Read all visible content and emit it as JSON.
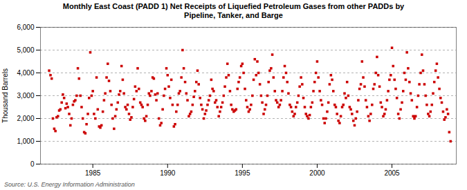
{
  "chart_data": {
    "type": "scatter",
    "title": "Monthly East Coast (PADD 1) Net Receipts of Liquefied Petroleum Gases from other PADDs by\nPipeline, Tanker, and Barge",
    "ylabel": "Thousand Barrels",
    "annotations": [
      "Source: U.S. Energy Information Administration"
    ],
    "color": "#cc0000",
    "marker": "square",
    "grid": "y",
    "xlim": [
      1981.5,
      2009.3
    ],
    "ylim": [
      0,
      6000
    ],
    "xticks": [
      1985,
      1990,
      1995,
      2000,
      2005
    ],
    "yticks": [
      0,
      {
        "value": 1000,
        "label": "1,000"
      },
      {
        "value": 2000,
        "label": "2,000"
      },
      {
        "value": 3000,
        "label": "3,000"
      },
      {
        "value": 4000,
        "label": "4,000"
      },
      {
        "value": 5000,
        "label": "5,000"
      },
      {
        "value": 6000,
        "label": "6,000"
      }
    ],
    "x": [
      1982.08,
      1982.17,
      1982.25,
      1982.33,
      1982.42,
      1982.5,
      1982.58,
      1982.67,
      1982.75,
      1982.83,
      1982.92,
      1983.0,
      1983.08,
      1983.17,
      1983.25,
      1983.33,
      1983.42,
      1983.5,
      1983.58,
      1983.67,
      1983.75,
      1983.83,
      1983.92,
      1984.0,
      1984.08,
      1984.17,
      1984.25,
      1984.33,
      1984.42,
      1984.5,
      1984.58,
      1984.67,
      1984.75,
      1984.83,
      1984.92,
      1985.0,
      1985.08,
      1985.17,
      1985.25,
      1985.33,
      1985.42,
      1985.5,
      1985.58,
      1985.67,
      1985.75,
      1985.83,
      1985.92,
      1986.0,
      1986.08,
      1986.17,
      1986.25,
      1986.33,
      1986.42,
      1986.5,
      1986.58,
      1986.67,
      1986.75,
      1986.83,
      1986.92,
      1987.0,
      1987.08,
      1987.17,
      1987.25,
      1987.33,
      1987.42,
      1987.5,
      1987.58,
      1987.67,
      1987.75,
      1987.83,
      1987.92,
      1988.0,
      1988.08,
      1988.17,
      1988.25,
      1988.33,
      1988.42,
      1988.5,
      1988.58,
      1988.67,
      1988.75,
      1988.83,
      1988.92,
      1989.0,
      1989.08,
      1989.17,
      1989.25,
      1989.33,
      1989.42,
      1989.5,
      1989.58,
      1989.67,
      1989.75,
      1989.83,
      1989.92,
      1990.0,
      1990.08,
      1990.17,
      1990.25,
      1990.33,
      1990.42,
      1990.5,
      1990.58,
      1990.67,
      1990.75,
      1990.83,
      1990.92,
      1991.0,
      1991.08,
      1991.17,
      1991.25,
      1991.33,
      1991.42,
      1991.5,
      1991.58,
      1991.67,
      1991.75,
      1991.83,
      1991.92,
      1992.0,
      1992.08,
      1992.17,
      1992.25,
      1992.33,
      1992.42,
      1992.5,
      1992.58,
      1992.67,
      1992.75,
      1992.83,
      1992.92,
      1993.0,
      1993.08,
      1993.17,
      1993.25,
      1993.33,
      1993.42,
      1993.5,
      1993.58,
      1993.67,
      1993.75,
      1993.83,
      1993.92,
      1994.0,
      1994.08,
      1994.17,
      1994.25,
      1994.33,
      1994.42,
      1994.5,
      1994.58,
      1994.67,
      1994.75,
      1994.83,
      1994.92,
      1995.0,
      1995.08,
      1995.17,
      1995.25,
      1995.33,
      1995.42,
      1995.5,
      1995.58,
      1995.67,
      1995.75,
      1995.83,
      1995.92,
      1996.0,
      1996.08,
      1996.17,
      1996.25,
      1996.33,
      1996.42,
      1996.5,
      1996.58,
      1996.67,
      1996.75,
      1996.83,
      1996.92,
      1997.0,
      1997.08,
      1997.17,
      1997.25,
      1997.33,
      1997.42,
      1997.5,
      1997.58,
      1997.67,
      1997.75,
      1997.83,
      1997.92,
      1998.0,
      1998.08,
      1998.17,
      1998.25,
      1998.33,
      1998.42,
      1998.5,
      1998.58,
      1998.67,
      1998.75,
      1998.83,
      1998.92,
      1999.0,
      1999.08,
      1999.17,
      1999.25,
      1999.33,
      1999.42,
      1999.5,
      1999.58,
      1999.67,
      1999.75,
      1999.83,
      1999.92,
      2000.0,
      2000.08,
      2000.17,
      2000.25,
      2000.33,
      2000.42,
      2000.5,
      2000.58,
      2000.67,
      2000.75,
      2000.83,
      2000.92,
      2001.0,
      2001.08,
      2001.17,
      2001.25,
      2001.33,
      2001.42,
      2001.5,
      2001.58,
      2001.67,
      2001.75,
      2001.83,
      2001.92,
      2002.0,
      2002.08,
      2002.17,
      2002.25,
      2002.33,
      2002.42,
      2002.5,
      2002.58,
      2002.67,
      2002.75,
      2002.83,
      2002.92,
      2003.0,
      2003.08,
      2003.17,
      2003.25,
      2003.33,
      2003.42,
      2003.5,
      2003.58,
      2003.67,
      2003.75,
      2003.83,
      2003.92,
      2004.0,
      2004.08,
      2004.17,
      2004.25,
      2004.33,
      2004.42,
      2004.5,
      2004.58,
      2004.67,
      2004.75,
      2004.83,
      2004.92,
      2005.0,
      2005.08,
      2005.17,
      2005.25,
      2005.33,
      2005.42,
      2005.5,
      2005.58,
      2005.67,
      2005.75,
      2005.83,
      2005.92,
      2006.0,
      2006.08,
      2006.17,
      2006.25,
      2006.33,
      2006.42,
      2006.5,
      2006.58,
      2006.67,
      2006.75,
      2006.83,
      2006.92,
      2007.0,
      2007.08,
      2007.17,
      2007.25,
      2007.33,
      2007.42,
      2007.5,
      2007.58,
      2007.67,
      2007.75,
      2007.83,
      2007.92,
      2008.0,
      2008.08,
      2008.17,
      2008.25,
      2008.33,
      2008.42,
      2008.5,
      2008.58,
      2008.67,
      2008.75,
      2008.83,
      2008.92
    ],
    "values": [
      4100,
      3900,
      3750,
      2000,
      1550,
      1450,
      2050,
      2100,
      2350,
      2400,
      2700,
      3050,
      2900,
      2450,
      2650,
      2500,
      2200,
      1700,
      2000,
      2600,
      2750,
      2800,
      3000,
      4200,
      3750,
      3000,
      2500,
      2000,
      1400,
      1350,
      1750,
      2200,
      2900,
      4900,
      3000,
      3200,
      2200,
      2000,
      3800,
      2400,
      1650,
      1600,
      1700,
      2300,
      2800,
      3100,
      3800,
      4400,
      3650,
      3200,
      2600,
      2000,
      1550,
      2100,
      2400,
      2700,
      3050,
      3200,
      4300,
      3700,
      3100,
      2500,
      2400,
      2600,
      2200,
      1950,
      2050,
      2500,
      2850,
      3400,
      3200,
      4200,
      3300,
      2700,
      2600,
      2500,
      2000,
      1900,
      2100,
      2600,
      3100,
      3000,
      3200,
      3800,
      3750,
      3050,
      2800,
      3100,
      2000,
      1700,
      1800,
      2400,
      3000,
      3300,
      4200,
      3900,
      3400,
      2900,
      3700,
      2600,
      1650,
      1750,
      2300,
      2600,
      3100,
      3200,
      3800,
      5000,
      4200,
      3600,
      3100,
      2800,
      2100,
      2200,
      2300,
      2600,
      2950,
      3200,
      3600,
      4100,
      3500,
      2900,
      2600,
      2400,
      2000,
      2200,
      2350,
      2600,
      2800,
      3000,
      3700,
      3300,
      3200,
      2700,
      2800,
      2500,
      2100,
      2300,
      2500,
      2700,
      3000,
      3400,
      3800,
      4400,
      3900,
      3200,
      2600,
      2400,
      2300,
      2350,
      2400,
      3300,
      3600,
      3800,
      4300,
      4400,
      4000,
      3300,
      2800,
      2500,
      2300,
      2400,
      2600,
      3000,
      3700,
      4600,
      3900,
      4500,
      4000,
      3500,
      3000,
      2700,
      2200,
      2400,
      2600,
      3000,
      3600,
      4100,
      4200,
      4800,
      3800,
      3200,
      2800,
      2700,
      2500,
      2600,
      2800,
      3200,
      3800,
      4300,
      4000,
      3600,
      3100,
      2600,
      2500,
      2300,
      2100,
      2200,
      2500,
      2700,
      3000,
      3400,
      3800,
      3500,
      2900,
      2500,
      2200,
      2100,
      2000,
      2150,
      2500,
      2700,
      3200,
      3600,
      4000,
      4500,
      3800,
      3200,
      2800,
      2600,
      2000,
      1800,
      2000,
      2300,
      2700,
      3500,
      3900,
      3700,
      3200,
      2600,
      2500,
      2200,
      1900,
      1800,
      2100,
      2500,
      2600,
      3100,
      2900,
      3600,
      3000,
      2500,
      2400,
      2200,
      1900,
      1700,
      2000,
      2300,
      2800,
      3300,
      3500,
      4500,
      3800,
      3400,
      2800,
      2500,
      2100,
      1900,
      2200,
      2600,
      3300,
      3500,
      4000,
      4700,
      3900,
      3400,
      2700,
      2500,
      2100,
      2200,
      2400,
      2800,
      3200,
      3700,
      3900,
      5100,
      4300,
      3700,
      3300,
      2900,
      2200,
      2000,
      2400,
      2700,
      3200,
      4000,
      3700,
      4900,
      4200,
      3600,
      3100,
      2800,
      2100,
      2000,
      2100,
      2500,
      3000,
      3500,
      4000,
      4800,
      4100,
      3500,
      3000,
      2600,
      2200,
      2100,
      2300,
      2600,
      3100,
      3600,
      4100,
      4400,
      3800,
      3300,
      2900,
      2700,
      2300,
      1950,
      2050,
      2400,
      2200,
      1400,
      1000
    ]
  }
}
